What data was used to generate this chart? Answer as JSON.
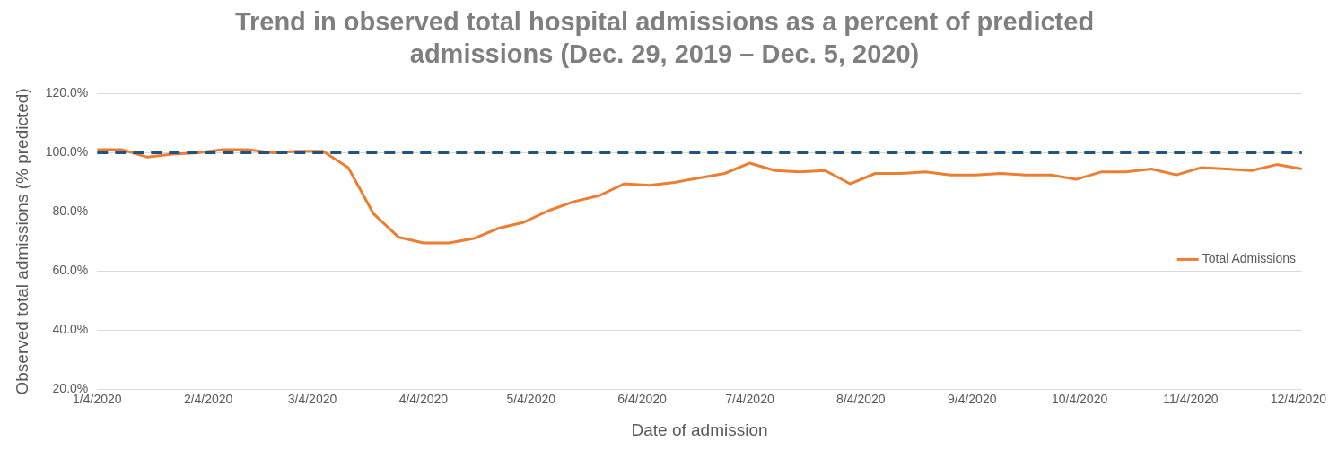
{
  "chart_data": {
    "type": "line",
    "title": "Trend in observed total hospital admissions as a percent of predicted admissions (Dec. 29, 2019 – Dec. 5, 2020)",
    "xlabel": "Date of admission",
    "ylabel": "Observed total admissions (% predicted)",
    "x": [
      "2020-01-04",
      "2020-01-11",
      "2020-01-18",
      "2020-01-25",
      "2020-02-01",
      "2020-02-08",
      "2020-02-15",
      "2020-02-22",
      "2020-02-29",
      "2020-03-07",
      "2020-03-14",
      "2020-03-21",
      "2020-03-28",
      "2020-04-04",
      "2020-04-11",
      "2020-04-18",
      "2020-04-25",
      "2020-05-02",
      "2020-05-09",
      "2020-05-16",
      "2020-05-23",
      "2020-05-30",
      "2020-06-06",
      "2020-06-13",
      "2020-06-20",
      "2020-06-27",
      "2020-07-04",
      "2020-07-11",
      "2020-07-18",
      "2020-07-25",
      "2020-08-01",
      "2020-08-08",
      "2020-08-15",
      "2020-08-22",
      "2020-08-29",
      "2020-09-05",
      "2020-09-12",
      "2020-09-19",
      "2020-09-26",
      "2020-10-03",
      "2020-10-10",
      "2020-10-17",
      "2020-10-24",
      "2020-10-31",
      "2020-11-07",
      "2020-11-14",
      "2020-11-21",
      "2020-11-28",
      "2020-12-05"
    ],
    "series": [
      {
        "name": "Total Admissions",
        "color": "#ed7d31",
        "values": [
          101,
          101,
          98.5,
          99.5,
          100,
          101,
          101,
          100,
          100.5,
          100.5,
          95,
          79.5,
          71.5,
          69.5,
          69.5,
          71,
          74.5,
          76.5,
          80.5,
          83.5,
          85.5,
          89.5,
          89,
          90,
          91.5,
          93,
          96.5,
          94,
          93.5,
          94,
          89.5,
          93,
          93,
          93.5,
          92.5,
          92.5,
          93,
          92.5,
          92.5,
          91,
          93.5,
          93.5,
          94.5,
          92.5,
          95,
          94.5,
          94,
          96,
          94.5
        ]
      }
    ],
    "xlim": [
      "2020-01-04",
      "2020-12-05"
    ],
    "xticks": [
      {
        "value": "2020-01-04",
        "label": "1/4/2020"
      },
      {
        "value": "2020-02-04",
        "label": "2/4/2020"
      },
      {
        "value": "2020-03-04",
        "label": "3/4/2020"
      },
      {
        "value": "2020-04-04",
        "label": "4/4/2020"
      },
      {
        "value": "2020-05-04",
        "label": "5/4/2020"
      },
      {
        "value": "2020-06-04",
        "label": "6/4/2020"
      },
      {
        "value": "2020-07-04",
        "label": "7/4/2020"
      },
      {
        "value": "2020-08-04",
        "label": "8/4/2020"
      },
      {
        "value": "2020-09-04",
        "label": "9/4/2020"
      },
      {
        "value": "2020-10-04",
        "label": "10/4/2020"
      },
      {
        "value": "2020-11-04",
        "label": "11/4/2020"
      },
      {
        "value": "2020-12-04",
        "label": "12/4/2020"
      }
    ],
    "ylim": [
      20,
      120
    ],
    "yticks": [
      {
        "value": 20,
        "label": "20.0%"
      },
      {
        "value": 40,
        "label": "40.0%"
      },
      {
        "value": 60,
        "label": "60.0%"
      },
      {
        "value": 80,
        "label": "80.0%"
      },
      {
        "value": 100,
        "label": "100.0%"
      },
      {
        "value": 120,
        "label": "120.0%"
      }
    ],
    "ref_lines": [
      {
        "axis": "y",
        "value": 100,
        "color": "#1f5582",
        "line_style": "dashed"
      }
    ],
    "grid": "y",
    "legend": "right",
    "marker": "none",
    "line_style": "solid"
  }
}
